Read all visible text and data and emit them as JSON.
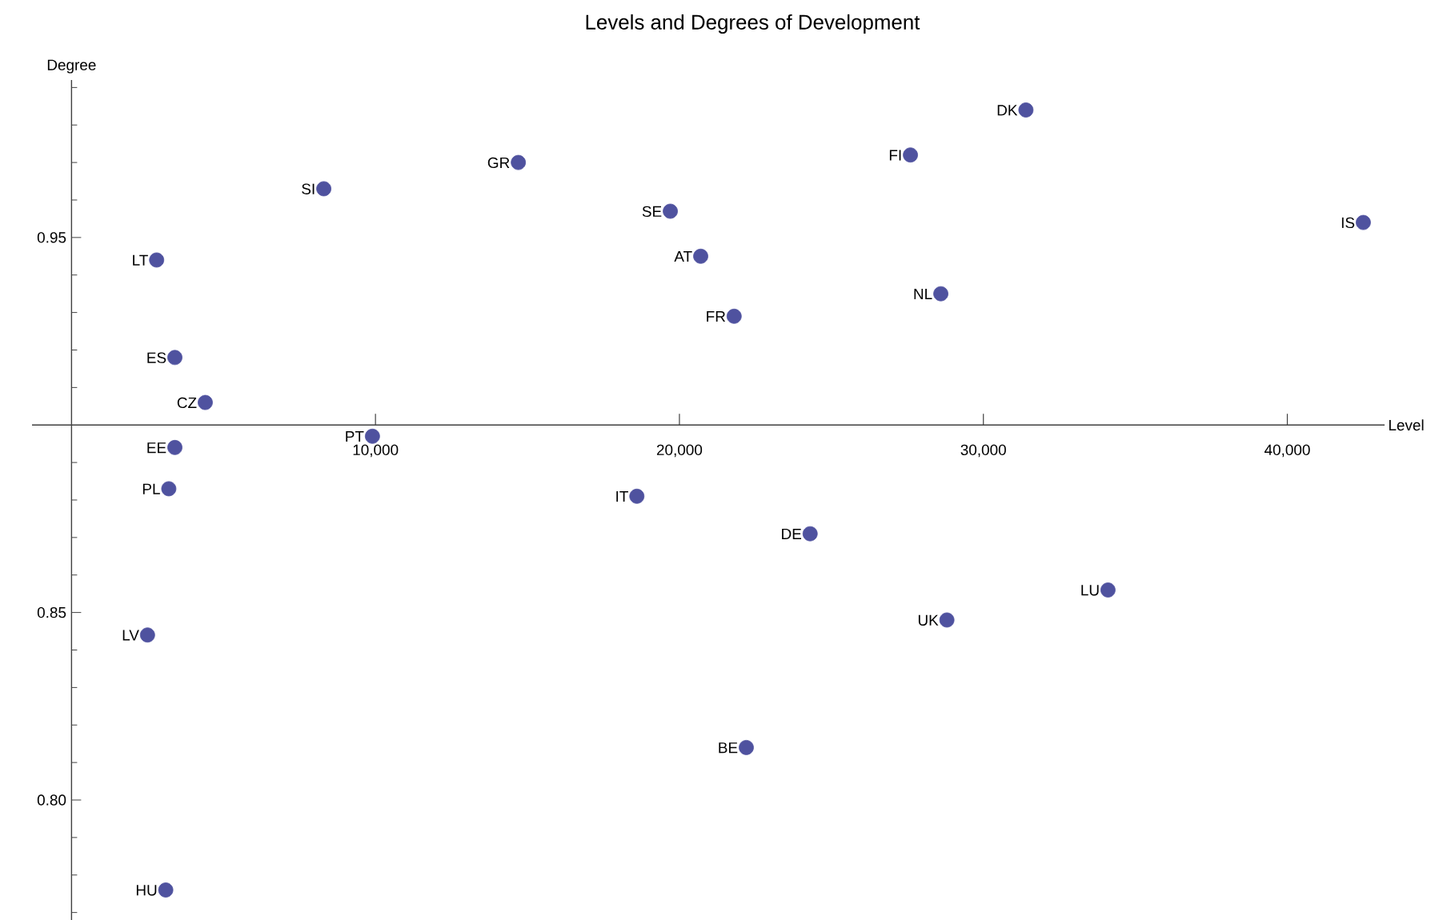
{
  "chart_data": {
    "type": "scatter",
    "title": "Levels and Degrees of Development",
    "xlabel": "Level",
    "ylabel": "Degree",
    "color": "#4f529f",
    "marker": "circle",
    "x": [
      31400,
      27600,
      14700,
      8300,
      19700,
      42500,
      20700,
      2800,
      28600,
      21800,
      3400,
      4400,
      9900,
      3400,
      3200,
      18600,
      24300,
      34100,
      28800,
      2500,
      22200,
      3100
    ],
    "values": [
      0.984,
      0.972,
      0.97,
      0.963,
      0.957,
      0.954,
      0.945,
      0.944,
      0.935,
      0.929,
      0.918,
      0.906,
      0.897,
      0.894,
      0.883,
      0.881,
      0.871,
      0.856,
      0.848,
      0.844,
      0.814,
      0.776
    ],
    "annotations": [
      {
        "text": "DK",
        "x": 31400,
        "y": 0.984
      },
      {
        "text": "FI",
        "x": 27600,
        "y": 0.972
      },
      {
        "text": "GR",
        "x": 14700,
        "y": 0.97
      },
      {
        "text": "SI",
        "x": 8300,
        "y": 0.963
      },
      {
        "text": "SE",
        "x": 19700,
        "y": 0.957
      },
      {
        "text": "IS",
        "x": 42500,
        "y": 0.954
      },
      {
        "text": "AT",
        "x": 20700,
        "y": 0.945
      },
      {
        "text": "LT",
        "x": 2800,
        "y": 0.944
      },
      {
        "text": "NL",
        "x": 28600,
        "y": 0.935
      },
      {
        "text": "FR",
        "x": 21800,
        "y": 0.929
      },
      {
        "text": "ES",
        "x": 3400,
        "y": 0.918
      },
      {
        "text": "CZ",
        "x": 4400,
        "y": 0.906
      },
      {
        "text": "PT",
        "x": 9900,
        "y": 0.897
      },
      {
        "text": "EE",
        "x": 3400,
        "y": 0.894
      },
      {
        "text": "PL",
        "x": 3200,
        "y": 0.883
      },
      {
        "text": "IT",
        "x": 18600,
        "y": 0.881
      },
      {
        "text": "DE",
        "x": 24300,
        "y": 0.871
      },
      {
        "text": "LU",
        "x": 34100,
        "y": 0.856
      },
      {
        "text": "UK",
        "x": 28800,
        "y": 0.848
      },
      {
        "text": "LV",
        "x": 2500,
        "y": 0.844
      },
      {
        "text": "BE",
        "x": 22200,
        "y": 0.814
      },
      {
        "text": "HU",
        "x": 3100,
        "y": 0.776
      }
    ],
    "xlim": [
      -1300,
      43200
    ],
    "ylim": [
      0.768,
      0.992
    ],
    "xticks": [
      {
        "value": 10000,
        "label": "10,000"
      },
      {
        "value": 20000,
        "label": "20,000"
      },
      {
        "value": 30000,
        "label": "30,000"
      },
      {
        "value": 40000,
        "label": "40,000"
      }
    ],
    "yticks": [
      {
        "value": 0.77,
        "label": null
      },
      {
        "value": 0.78,
        "label": null
      },
      {
        "value": 0.79,
        "label": null
      },
      {
        "value": 0.8,
        "label": "0.80"
      },
      {
        "value": 0.81,
        "label": null
      },
      {
        "value": 0.82,
        "label": null
      },
      {
        "value": 0.83,
        "label": null
      },
      {
        "value": 0.84,
        "label": null
      },
      {
        "value": 0.85,
        "label": "0.85"
      },
      {
        "value": 0.86,
        "label": null
      },
      {
        "value": 0.87,
        "label": null
      },
      {
        "value": 0.88,
        "label": null
      },
      {
        "value": 0.89,
        "label": null
      },
      {
        "value": 0.91,
        "label": null
      },
      {
        "value": 0.92,
        "label": null
      },
      {
        "value": 0.93,
        "label": null
      },
      {
        "value": 0.94,
        "label": null
      },
      {
        "value": 0.95,
        "label": "0.95"
      },
      {
        "value": 0.96,
        "label": null
      },
      {
        "value": 0.97,
        "label": null
      },
      {
        "value": 0.98,
        "label": null
      },
      {
        "value": 0.99,
        "label": null
      }
    ]
  }
}
